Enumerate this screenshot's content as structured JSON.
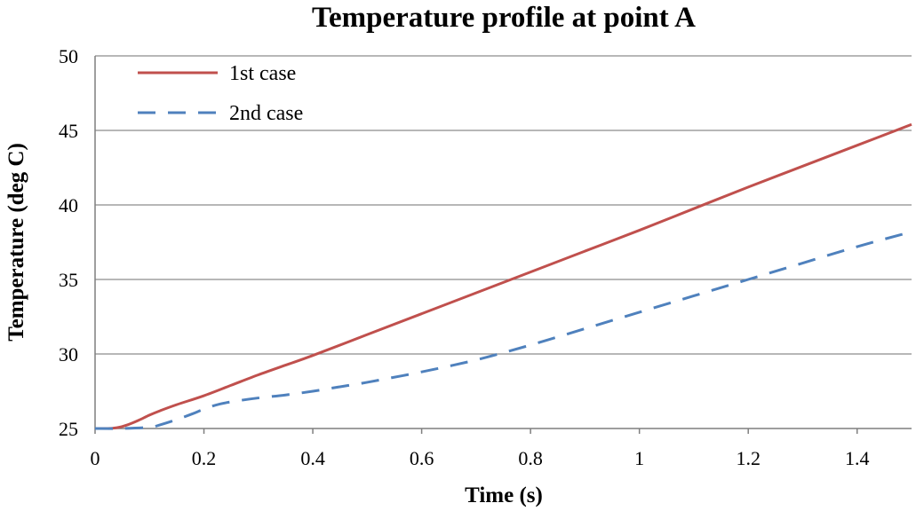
{
  "chart_data": {
    "type": "line",
    "title": "Temperature profile at point A",
    "xlabel": "Time (s)",
    "ylabel": "Temperature (deg C)",
    "xlim": [
      0,
      1.5
    ],
    "ylim": [
      25,
      50
    ],
    "xticks": [
      0,
      0.2,
      0.4,
      0.6,
      0.8,
      1,
      1.2,
      1.4
    ],
    "xtick_labels": [
      "0",
      "0.2",
      "0.4",
      "0.6",
      "0.8",
      "1",
      "1.2",
      "1.4"
    ],
    "yticks": [
      25,
      30,
      35,
      40,
      45,
      50
    ],
    "ytick_labels": [
      "25",
      "30",
      "35",
      "40",
      "45",
      "50"
    ],
    "grid": "horizontal",
    "legend": "top-left",
    "series": [
      {
        "name": "1st case",
        "color": "#C0504D",
        "style": "solid",
        "x": [
          0,
          0.02,
          0.04,
          0.06,
          0.08,
          0.1,
          0.12,
          0.15,
          0.2,
          0.25,
          0.3,
          0.35,
          0.4,
          0.5,
          0.6,
          0.7,
          0.8,
          0.9,
          1.0,
          1.1,
          1.2,
          1.3,
          1.4,
          1.5
        ],
        "y": [
          25,
          25,
          25.05,
          25.25,
          25.55,
          25.9,
          26.2,
          26.6,
          27.2,
          27.9,
          28.6,
          29.25,
          29.9,
          31.3,
          32.7,
          34.1,
          35.5,
          36.9,
          38.3,
          39.75,
          41.2,
          42.6,
          44.0,
          45.4
        ]
      },
      {
        "name": "2nd case",
        "color": "#4F81BD",
        "style": "dashed",
        "x": [
          0,
          0.05,
          0.1,
          0.12,
          0.15,
          0.18,
          0.2,
          0.23,
          0.27,
          0.3,
          0.35,
          0.4,
          0.45,
          0.5,
          0.6,
          0.7,
          0.8,
          0.9,
          1.0,
          1.1,
          1.2,
          1.3,
          1.4,
          1.5
        ],
        "y": [
          25,
          25,
          25.08,
          25.25,
          25.6,
          26.0,
          26.3,
          26.65,
          26.9,
          27.05,
          27.25,
          27.5,
          27.8,
          28.1,
          28.8,
          29.6,
          30.6,
          31.7,
          32.8,
          33.9,
          35.0,
          36.1,
          37.2,
          38.2
        ]
      }
    ]
  }
}
